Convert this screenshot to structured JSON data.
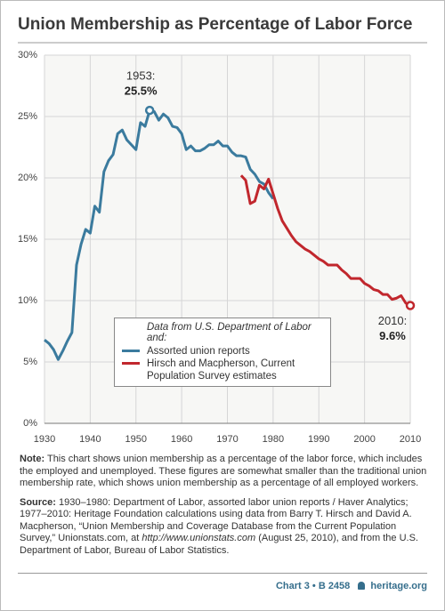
{
  "chart_data": {
    "type": "line",
    "title": "Union Membership as Percentage of Labor Force",
    "xlim": [
      1930,
      2010
    ],
    "xticks": [
      1930,
      1940,
      1950,
      1960,
      1970,
      1980,
      1990,
      2000,
      2010
    ],
    "ylim": [
      0,
      30
    ],
    "yticks": [
      {
        "value": 0,
        "label": "0%"
      },
      {
        "value": 5,
        "label": "5%"
      },
      {
        "value": 10,
        "label": "10%"
      },
      {
        "value": 15,
        "label": "15%"
      },
      {
        "value": 20,
        "label": "20%"
      },
      {
        "value": 25,
        "label": "25%"
      },
      {
        "value": 30,
        "label": "30%"
      }
    ],
    "grid": true,
    "legend_title": "Data from U.S. Department of Labor and:",
    "series": [
      {
        "name": "Assorted union reports",
        "color": "#3b7b9e",
        "x": [
          1930,
          1931,
          1932,
          1933,
          1934,
          1935,
          1936,
          1937,
          1938,
          1939,
          1940,
          1941,
          1942,
          1943,
          1944,
          1945,
          1946,
          1947,
          1948,
          1949,
          1950,
          1951,
          1952,
          1953,
          1954,
          1955,
          1956,
          1957,
          1958,
          1959,
          1960,
          1961,
          1962,
          1963,
          1964,
          1965,
          1966,
          1967,
          1968,
          1969,
          1970,
          1971,
          1972,
          1973,
          1974,
          1975,
          1976,
          1977,
          1978,
          1979,
          1980
        ],
        "values": [
          6.8,
          6.5,
          6.0,
          5.2,
          5.9,
          6.7,
          7.4,
          12.9,
          14.6,
          15.8,
          15.5,
          17.7,
          17.2,
          20.5,
          21.4,
          21.9,
          23.6,
          23.9,
          23.1,
          22.7,
          22.3,
          24.5,
          24.2,
          25.5,
          25.4,
          24.7,
          25.2,
          24.9,
          24.2,
          24.1,
          23.6,
          22.3,
          22.6,
          22.2,
          22.2,
          22.4,
          22.7,
          22.7,
          23.0,
          22.6,
          22.6,
          22.1,
          21.8,
          21.8,
          21.7,
          20.7,
          20.3,
          19.7,
          19.5,
          18.8,
          18.3
        ]
      },
      {
        "name": "Hirsch and Macpherson, Current Population Survey estimates",
        "color": "#c1272d",
        "x": [
          1973,
          1974,
          1975,
          1976,
          1977,
          1978,
          1979,
          1980,
          1981,
          1982,
          1983,
          1984,
          1985,
          1986,
          1987,
          1988,
          1989,
          1990,
          1991,
          1992,
          1993,
          1994,
          1995,
          1996,
          1997,
          1998,
          1999,
          2000,
          2001,
          2002,
          2003,
          2004,
          2005,
          2006,
          2007,
          2008,
          2009,
          2010
        ],
        "values": [
          20.2,
          19.8,
          17.9,
          18.1,
          19.4,
          19.1,
          19.9,
          18.7,
          17.5,
          16.5,
          15.9,
          15.3,
          14.8,
          14.5,
          14.2,
          14.0,
          13.7,
          13.4,
          13.2,
          12.9,
          12.9,
          12.9,
          12.5,
          12.2,
          11.8,
          11.8,
          11.8,
          11.4,
          11.2,
          10.9,
          10.8,
          10.5,
          10.5,
          10.1,
          10.2,
          10.4,
          9.8,
          9.6
        ]
      }
    ],
    "annotations": [
      {
        "year_label": "1953:",
        "value_label": "25.5%",
        "series": 0,
        "index": 23
      },
      {
        "year_label": "2010:",
        "value_label": "9.6%",
        "series": 1,
        "index": 37
      }
    ]
  },
  "notes": {
    "note_label": "Note:",
    "note_text": "This chart shows union membership as a percentage of the labor force, which includes the employed and unemployed. These figures are somewhat smaller than the traditional union membership rate, which shows union membership as a percentage of all employed workers.",
    "source_label": "Source:",
    "source_parts": [
      "1930–1980: Department of Labor, assorted labor union reports / Haver Analytics; 1977–2010: Heritage Foundation calculations using data from Barry T. Hirsch and David A. Macpherson, “Union Membership and Coverage Database from the Current Population Survey,” Unionstats.com, at ",
      "http://www.unionstats.com",
      " (August 25, 2010), and from the U.S. Department of Labor, Bureau of Labor Statistics."
    ]
  },
  "footer": {
    "chart_id": "Chart 3 • B 2458",
    "site": "heritage.org"
  }
}
